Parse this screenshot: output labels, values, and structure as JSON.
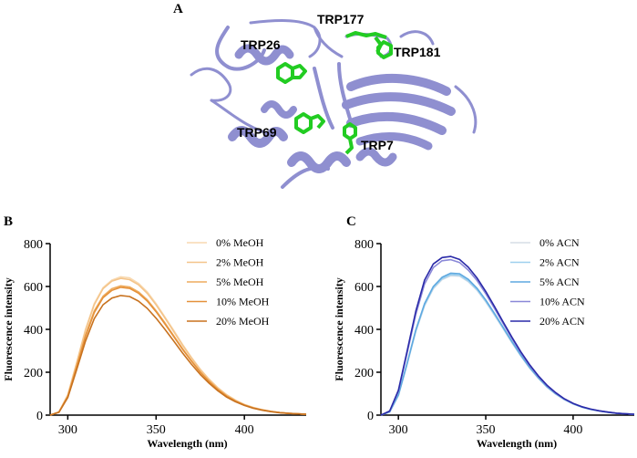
{
  "panels": {
    "a": {
      "letter": "A"
    },
    "b": {
      "letter": "B"
    },
    "c": {
      "letter": "C"
    }
  },
  "structure": {
    "ribbon_color": "#8f8fd0",
    "residue_color": "#22cc22",
    "residues": [
      "TRP177",
      "TRP26",
      "TRP181",
      "TRP69",
      "TRP7"
    ]
  },
  "chart_data": [
    {
      "type": "line",
      "panel": "B",
      "xlabel": "Wavelength (nm)",
      "ylabel": "Fluorescence intensity",
      "xlim": [
        290,
        435
      ],
      "ylim": [
        0,
        800
      ],
      "xticks": [
        300,
        350,
        400
      ],
      "yticks": [
        0,
        200,
        400,
        600,
        800
      ],
      "grid": false,
      "legend_position": "top-right",
      "x": [
        290,
        295,
        300,
        305,
        310,
        315,
        320,
        325,
        330,
        335,
        340,
        345,
        350,
        355,
        360,
        365,
        370,
        375,
        380,
        385,
        390,
        395,
        400,
        405,
        410,
        415,
        420,
        425,
        430,
        435
      ],
      "series": [
        {
          "name": "0% MeOH",
          "color": "#f8d9b0",
          "values": [
            0,
            15,
            95,
            245,
            400,
            520,
            595,
            630,
            645,
            640,
            615,
            575,
            520,
            458,
            395,
            330,
            270,
            215,
            168,
            128,
            95,
            70,
            50,
            36,
            26,
            18,
            12,
            8,
            6,
            4
          ]
        },
        {
          "name": "2% MeOH",
          "color": "#f4c48a",
          "values": [
            0,
            15,
            94,
            242,
            395,
            515,
            590,
            625,
            638,
            632,
            608,
            568,
            514,
            453,
            390,
            326,
            267,
            212,
            166,
            126,
            94,
            69,
            49,
            35,
            25,
            18,
            12,
            8,
            6,
            4
          ]
        },
        {
          "name": "5% MeOH",
          "color": "#eeac5e",
          "values": [
            0,
            14,
            88,
            228,
            372,
            486,
            555,
            590,
            603,
            598,
            575,
            538,
            487,
            430,
            370,
            310,
            254,
            202,
            158,
            120,
            89,
            65,
            47,
            34,
            24,
            17,
            12,
            8,
            6,
            4
          ]
        },
        {
          "name": "10% MeOH",
          "color": "#e5913a",
          "values": [
            0,
            14,
            86,
            224,
            366,
            478,
            548,
            582,
            596,
            591,
            569,
            532,
            482,
            425,
            366,
            307,
            252,
            200,
            157,
            119,
            88,
            65,
            47,
            33,
            24,
            17,
            12,
            8,
            6,
            4
          ]
        },
        {
          "name": "20% MeOH",
          "color": "#c8721f",
          "values": [
            0,
            13,
            82,
            212,
            345,
            450,
            515,
            546,
            558,
            553,
            532,
            498,
            452,
            400,
            345,
            290,
            238,
            190,
            149,
            113,
            84,
            62,
            45,
            32,
            23,
            16,
            11,
            8,
            6,
            4
          ]
        }
      ]
    },
    {
      "type": "line",
      "panel": "C",
      "xlabel": "Wavelength (nm)",
      "ylabel": "Fluorescence intensity",
      "xlim": [
        290,
        435
      ],
      "ylim": [
        0,
        800
      ],
      "xticks": [
        300,
        350,
        400
      ],
      "yticks": [
        0,
        200,
        400,
        600,
        800
      ],
      "grid": false,
      "legend_position": "top-right",
      "x": [
        290,
        295,
        300,
        305,
        310,
        315,
        320,
        325,
        330,
        335,
        340,
        345,
        350,
        355,
        360,
        365,
        370,
        375,
        380,
        385,
        390,
        395,
        400,
        405,
        410,
        415,
        420,
        425,
        430,
        435
      ],
      "series": [
        {
          "name": "0% ACN",
          "color": "#d6dde6",
          "values": [
            0,
            15,
            92,
            238,
            390,
            510,
            590,
            632,
            650,
            648,
            622,
            582,
            528,
            466,
            402,
            337,
            276,
            220,
            172,
            131,
            98,
            72,
            52,
            37,
            27,
            19,
            13,
            9,
            6,
            4
          ]
        },
        {
          "name": "2% ACN",
          "color": "#9ed0ee",
          "values": [
            0,
            15,
            93,
            240,
            393,
            514,
            594,
            636,
            655,
            652,
            626,
            586,
            532,
            470,
            405,
            340,
            278,
            222,
            174,
            132,
            99,
            73,
            52,
            37,
            27,
            19,
            13,
            9,
            6,
            4
          ]
        },
        {
          "name": "5% ACN",
          "color": "#5fa9e0",
          "values": [
            0,
            15,
            94,
            243,
            398,
            520,
            600,
            643,
            662,
            659,
            633,
            592,
            537,
            474,
            409,
            343,
            281,
            224,
            175,
            133,
            100,
            73,
            53,
            38,
            27,
            19,
            13,
            9,
            6,
            4
          ]
        },
        {
          "name": "10% ACN",
          "color": "#8a88d8",
          "values": [
            0,
            18,
            112,
            290,
            470,
            612,
            688,
            720,
            725,
            712,
            676,
            628,
            567,
            498,
            427,
            357,
            291,
            232,
            181,
            138,
            103,
            75,
            54,
            39,
            28,
            20,
            14,
            9,
            6,
            4
          ]
        },
        {
          "name": "20% ACN",
          "color": "#2a2aa8",
          "values": [
            0,
            19,
            116,
            300,
            485,
            630,
            705,
            735,
            740,
            726,
            690,
            640,
            577,
            507,
            434,
            363,
            296,
            236,
            184,
            140,
            105,
            76,
            55,
            39,
            28,
            20,
            14,
            9,
            6,
            4
          ]
        }
      ]
    }
  ]
}
